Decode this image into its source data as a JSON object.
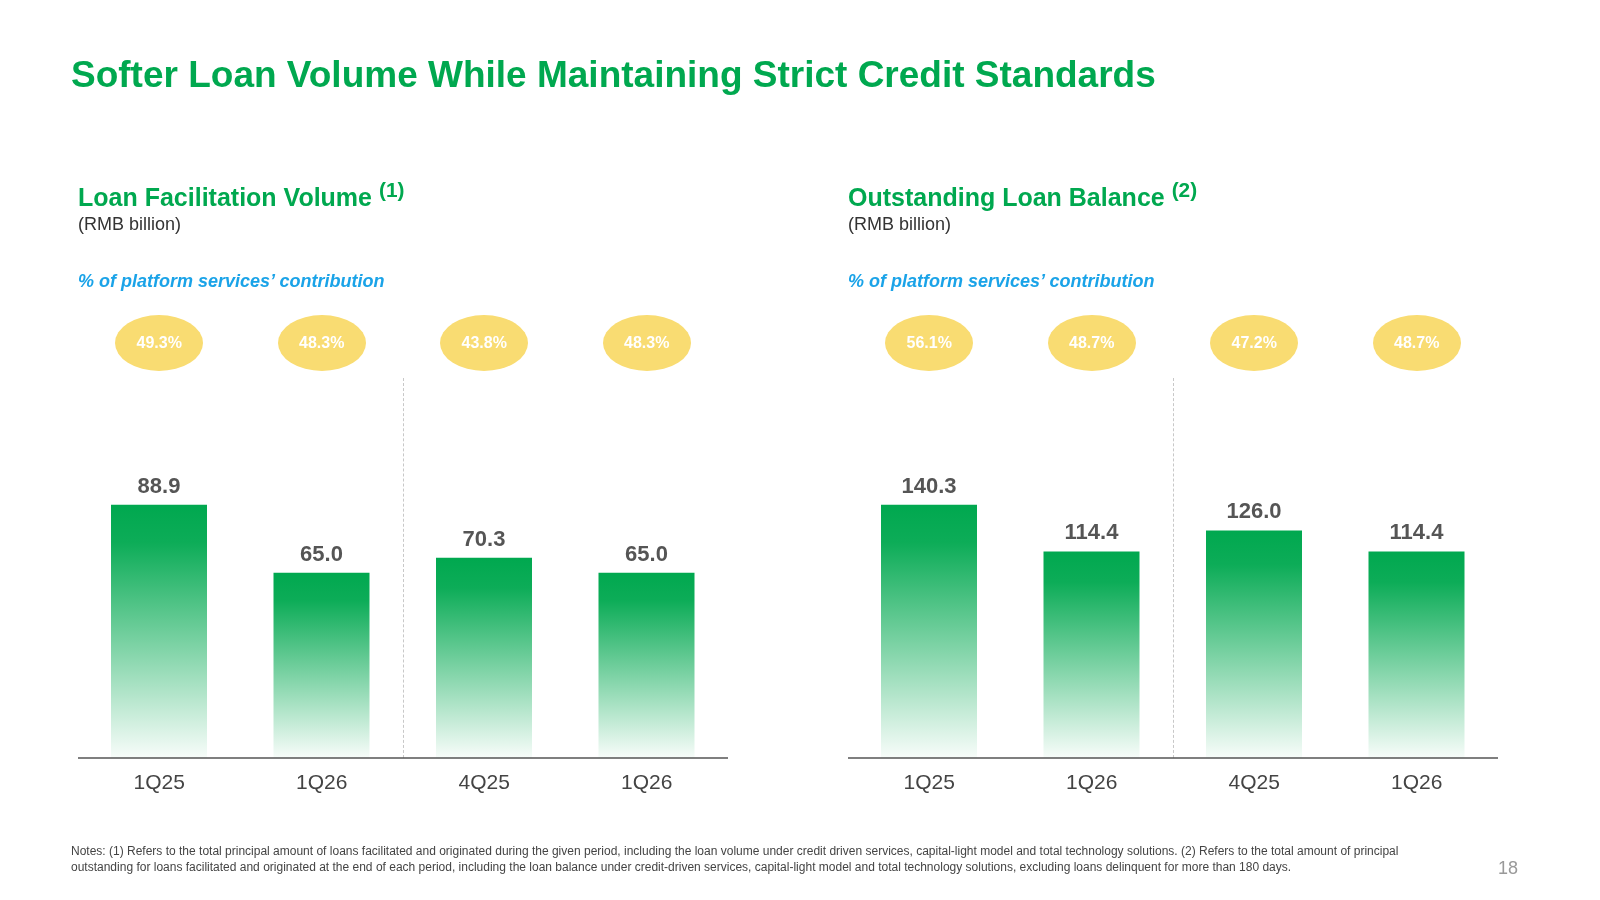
{
  "chart_data": [
    {
      "type": "other",
      "title": "Softer Loan Volume While Maintaining Strict Credit Standards",
      "annotations": [
        "Notes: (1) Refers to the total principal amount of loans facilitated and originated during the given period, including the loan volume under credit driven services, capital-light model and total technology solutions. (2) Refers to the total amount of principal outstanding for loans facilitated and originated at the end of each period, including the loan balance under credit-driven services, capital-light model and total technology solutions, excluding loans delinquent for more than 180 days.",
        "18"
      ]
    },
    {
      "type": "bar",
      "title": "Loan Facilitation Volume $^{(1)}$",
      "subtitle": "(RMB billion)",
      "categories": [
        "1Q25",
        "1Q26",
        "4Q25",
        "1Q26"
      ],
      "values": [
        88.9,
        65.0,
        70.3,
        65.0
      ],
      "value_labels": [
        "88.9",
        "65.0",
        "70.3",
        "65.0"
      ],
      "color": "#00a84f",
      "annotations": [
        "% of platform services’ contribution",
        "49.3%",
        "48.3%",
        "43.8%",
        "48.3%"
      ]
    },
    {
      "type": "bar",
      "title": "Outstanding Loan Balance $^{(2)}$",
      "subtitle": "(RMB billion)",
      "categories": [
        "1Q25",
        "1Q26",
        "4Q25",
        "1Q26"
      ],
      "values": [
        140.3,
        114.4,
        126.0,
        114.4
      ],
      "value_labels": [
        "140.3",
        "114.4",
        "126.0",
        "114.4"
      ],
      "color": "#00a84f",
      "annotations": [
        "% of platform services’ contribution",
        "56.1%",
        "48.7%",
        "47.2%",
        "48.7%"
      ]
    }
  ]
}
